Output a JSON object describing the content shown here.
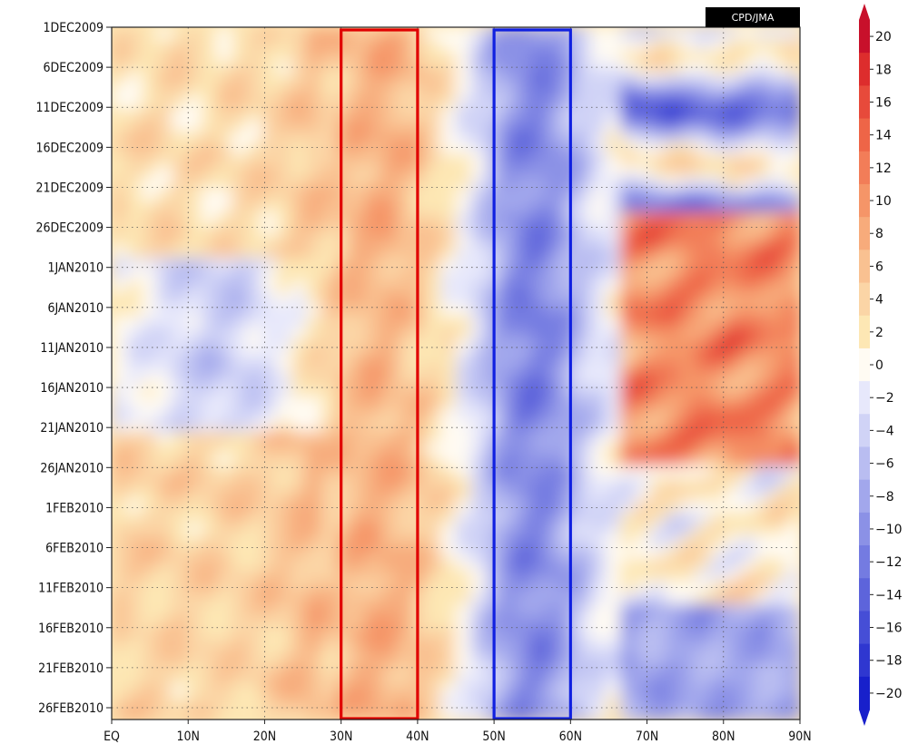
{
  "chart_data": {
    "type": "heatmap",
    "credit": "CPD/JMA",
    "x_axis": {
      "range": [
        0,
        90
      ],
      "ticks": [
        0,
        10,
        20,
        30,
        40,
        50,
        60,
        70,
        80,
        90
      ],
      "tick_labels": [
        "EQ",
        "10N",
        "20N",
        "30N",
        "40N",
        "50N",
        "60N",
        "70N",
        "80N",
        "90N"
      ]
    },
    "y_axis": {
      "range": [
        "1DEC2009",
        "28FEB2010"
      ],
      "tick_labels": [
        "1DEC2009",
        "6DEC2009",
        "11DEC2009",
        "16DEC2009",
        "21DEC2009",
        "26DEC2009",
        "1JAN2010",
        "6JAN2010",
        "11JAN2010",
        "16JAN2010",
        "21JAN2010",
        "26JAN2010",
        "1FEB2010",
        "6FEB2010",
        "11FEB2010",
        "16FEB2010",
        "21FEB2010",
        "26FEB2010"
      ]
    },
    "colorbar": {
      "levels": [
        20,
        18,
        16,
        14,
        12,
        10,
        8,
        6,
        4,
        2,
        0,
        -2,
        -4,
        -6,
        -8,
        -10,
        -12,
        -14,
        -16,
        -18,
        -20
      ],
      "labels": [
        "20",
        "18",
        "16",
        "14",
        "12",
        "10",
        "8",
        "6",
        "4",
        "2",
        "0",
        "−2",
        "−4",
        "−6",
        "−8",
        "−10",
        "−12",
        "−14",
        "−16",
        "−18",
        "−20"
      ],
      "colors": [
        "#c8102b",
        "#dd2d2d",
        "#e74a3b",
        "#ee6547",
        "#f27d58",
        "#f59568",
        "#f7ab7b",
        "#f9c191",
        "#fbd5a6",
        "#fde7b4",
        "#fffbf3",
        "#e7e8fb",
        "#d0d3f6",
        "#b9bdf1",
        "#a2a7ec",
        "#8b91e6",
        "#747be1",
        "#5d64db",
        "#464ed6",
        "#2f37d0",
        "#1820cb"
      ]
    },
    "boxes": [
      {
        "lat_min": 30,
        "lat_max": 40,
        "color": "#e00000"
      },
      {
        "lat_min": 50,
        "lat_max": 60,
        "color": "#1020e0"
      }
    ],
    "regions": [
      {
        "lat_range": [
          0,
          20
        ],
        "period": "1DEC2009–1JAN2010",
        "value": 2
      },
      {
        "lat_range": [
          0,
          25
        ],
        "period": "6JAN2010–26JAN2010",
        "value": -4
      },
      {
        "lat_range": [
          0,
          45
        ],
        "period": "1FEB2010–26FEB2010",
        "value": 4
      },
      {
        "lat_range": [
          25,
          45
        ],
        "period": "1DEC2009–26JAN2010",
        "value": 6
      },
      {
        "lat_range": [
          46,
          65
        ],
        "period": "1DEC2009–26FEB2010",
        "value": -10
      },
      {
        "lat_range": [
          65,
          90
        ],
        "period": "1JAN2010–1FEB2010",
        "value": 12
      },
      {
        "lat_range": [
          65,
          90
        ],
        "period": "1DEC2009–26DEC2009",
        "value": -6
      },
      {
        "lat_range": [
          65,
          90
        ],
        "period": "11FEB2010–26FEB2010",
        "value": -10
      }
    ]
  }
}
